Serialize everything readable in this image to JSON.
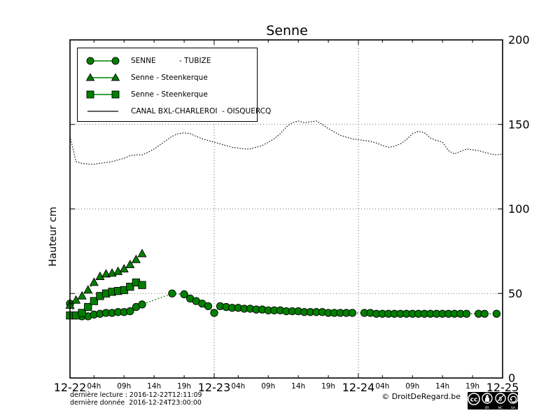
{
  "title": "Senne",
  "ylabel": "Hauteur cm",
  "footer": {
    "line1": "dernière lecture : 2016-12-22T12:11:09",
    "line2": "dernière donnée  2016-12-24T23:00:00"
  },
  "copyright": "© DroitDeRegard.be",
  "cc_badge_labels": {
    "by": "BY",
    "nc": "NC",
    "sa": "SA"
  },
  "colors": {
    "series_green": "#008000",
    "canal_black": "#000000",
    "grid": "#444444"
  },
  "legend": {
    "items": [
      {
        "label": "SENNE          - TUBIZE",
        "marker": "circle"
      },
      {
        "label": "Senne - Steenkerque",
        "marker": "triangle"
      },
      {
        "label": "Senne - Steenkerque",
        "marker": "square"
      },
      {
        "label": "CANAL BXL-CHARLEROI  - OISQUERCQ",
        "marker": "none"
      }
    ]
  },
  "chart_data": {
    "type": "line",
    "title": "Senne",
    "ylabel": "Hauteur cm",
    "x_unit": "hours since 2016-12-22 00:00",
    "xlim": [
      0,
      72
    ],
    "ylim": [
      0,
      200
    ],
    "yticks": [
      0,
      50,
      100,
      150,
      200
    ],
    "x_major_ticks": [
      {
        "hour": 0,
        "label": "12-22"
      },
      {
        "hour": 24,
        "label": "12-23"
      },
      {
        "hour": 48,
        "label": "12-24"
      },
      {
        "hour": 72,
        "label": "12-25"
      }
    ],
    "x_minor_hours": [
      4,
      9,
      14,
      19
    ],
    "x_minor_labels": [
      "04h",
      "09h",
      "14h",
      "19h"
    ],
    "grid": {
      "h_values": [
        50,
        100,
        150
      ],
      "v_hours": [
        24,
        48
      ]
    },
    "legend_position": "upper left",
    "series": [
      {
        "name": "SENNE          - TUBIZE",
        "marker": "circle",
        "color": "#008000",
        "x": [
          0,
          1,
          2,
          3,
          4,
          5,
          6,
          7,
          8,
          9,
          10,
          11,
          12,
          17,
          19,
          20,
          21,
          22,
          23,
          24,
          25,
          26,
          27,
          28,
          29,
          30,
          31,
          32,
          33,
          34,
          35,
          36,
          37,
          38,
          39,
          40,
          41,
          42,
          43,
          44,
          45,
          46,
          47,
          49,
          50,
          51,
          52,
          53,
          54,
          55,
          56,
          57,
          58,
          59,
          60,
          61,
          62,
          63,
          64,
          65,
          66,
          68,
          69,
          71
        ],
        "y": [
          44,
          37,
          36.5,
          36.5,
          37.5,
          38,
          38.5,
          38.5,
          39,
          39,
          39.5,
          42,
          43.5,
          50,
          49.5,
          47,
          45.5,
          44,
          42.5,
          38.5,
          42.5,
          42,
          41.5,
          41.5,
          41,
          41,
          40.5,
          40.5,
          40,
          40,
          40,
          39.5,
          39.5,
          39.5,
          39,
          39,
          39,
          39,
          38.5,
          38.5,
          38.5,
          38.5,
          38.5,
          38.5,
          38.5,
          38,
          38,
          38,
          38,
          38,
          38,
          38,
          38,
          38,
          38,
          38,
          38,
          38,
          38,
          38,
          38,
          38,
          38,
          38
        ]
      },
      {
        "name": "Senne - Steenkerque",
        "marker": "triangle",
        "color": "#008000",
        "x": [
          0,
          1,
          2,
          3,
          4,
          5,
          6,
          7,
          8,
          9,
          10,
          11,
          12
        ],
        "y": [
          43,
          46,
          48.5,
          52,
          56.5,
          60,
          61.5,
          62,
          63,
          64.5,
          67,
          70,
          73.5
        ]
      },
      {
        "name": "Senne - Steenkerque",
        "marker": "square",
        "color": "#008000",
        "x": [
          0,
          1,
          2,
          3,
          4,
          5,
          6,
          7,
          8,
          9,
          10,
          11,
          12
        ],
        "y": [
          37,
          37,
          38.5,
          42,
          45.5,
          48.5,
          50,
          51,
          51.5,
          52,
          54,
          56.5,
          55
        ]
      },
      {
        "name": "CANAL BXL-CHARLEROI  - OISQUERCQ",
        "marker": "none",
        "color": "#000000",
        "x": [
          0,
          1,
          2,
          3,
          4,
          5,
          6,
          7,
          8,
          9,
          10,
          11,
          12,
          13,
          14,
          15,
          16,
          17,
          18,
          19,
          20,
          21,
          22,
          23,
          24,
          25,
          26,
          27,
          28,
          29,
          30,
          31,
          32,
          33,
          34,
          35,
          36,
          37,
          38,
          39,
          40,
          41,
          42,
          43,
          44,
          45,
          46,
          47,
          48,
          49,
          50,
          51,
          52,
          53,
          54,
          55,
          56,
          57,
          58,
          59,
          60,
          61,
          62,
          63,
          64,
          65,
          66,
          67,
          68,
          69,
          70,
          71,
          72
        ],
        "y": [
          143,
          128,
          127,
          126.5,
          126.5,
          127,
          127.5,
          128,
          129,
          130,
          131.5,
          132,
          132,
          133.5,
          135.5,
          138,
          140.5,
          143,
          144.5,
          145,
          144.5,
          143,
          141.5,
          140.5,
          139.5,
          138.5,
          137.5,
          136.5,
          136,
          135.5,
          135.5,
          136.5,
          137.5,
          139.5,
          141.5,
          144.5,
          148.5,
          151,
          152,
          151,
          151.5,
          152,
          150,
          147.5,
          145.5,
          143.5,
          142.5,
          141.5,
          141,
          140.5,
          140,
          139,
          137.5,
          136.5,
          137,
          138.5,
          141,
          144.5,
          146,
          145,
          142,
          140.5,
          139.5,
          134.5,
          132.5,
          134,
          135.5,
          135,
          134.5,
          133.5,
          132.5,
          132,
          132.5
        ]
      }
    ]
  }
}
